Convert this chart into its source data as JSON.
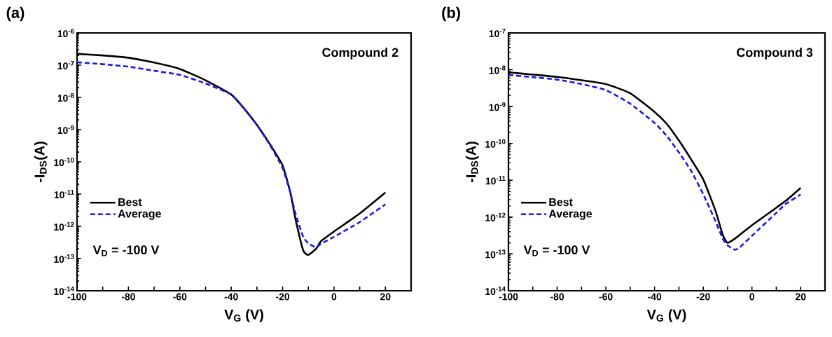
{
  "chart_data": [
    {
      "type": "line",
      "title": "(a)",
      "xlabel": "V$_{G}$ (V)",
      "ylabel": "-I$_{DS}$(A)",
      "log": "y",
      "legend": "left",
      "annotations": [
        "Compound 2",
        "V$_{D}$ = -100 V"
      ],
      "xlim": [
        -100,
        30
      ],
      "ylim": [
        1e-14,
        1e-06
      ],
      "xticks": [
        -100,
        {
          "value": -90,
          "label": null
        },
        -80,
        {
          "value": -70,
          "label": null
        },
        -60,
        {
          "value": -50,
          "label": null
        },
        -40,
        {
          "value": -30,
          "label": null
        },
        -20,
        {
          "value": -10,
          "label": null
        },
        0,
        {
          "value": 10,
          "label": null
        },
        20
      ],
      "yticks": [
        {
          "value": 1e-14,
          "label": "10$^{-14}$"
        },
        {
          "value": 1e-13,
          "label": "10$^{-13}$"
        },
        {
          "value": 1e-12,
          "label": "10$^{-12}$"
        },
        {
          "value": 1e-11,
          "label": "10$^{-11}$"
        },
        {
          "value": 1e-10,
          "label": "10$^{-10}$"
        },
        {
          "value": 1e-09,
          "label": "10$^{-9}$"
        },
        {
          "value": 1e-08,
          "label": "10$^{-8}$"
        },
        {
          "value": 1e-07,
          "label": "10$^{-7}$"
        },
        {
          "value": 1e-06,
          "label": "10$^{-6}$"
        }
      ],
      "x": [
        -100,
        -90,
        -80,
        -70,
        -60,
        -50,
        -40,
        -35,
        -30,
        -25,
        -20,
        -17,
        -15,
        -12,
        -10,
        -7,
        -5,
        0,
        10,
        20
      ],
      "series": [
        {
          "name": "Best",
          "color": "#000000",
          "line_style": "solid",
          "values": [
            2.24e-07,
            2e-07,
            1.7e-07,
            1.2e-07,
            7.6e-08,
            3.4e-08,
            1.23e-08,
            4.5e-09,
            1.4e-09,
            3.6e-10,
            7.7e-11,
            1.12e-11,
            1.7e-12,
            1.8e-13,
            1.3e-13,
            2e-13,
            3.5e-13,
            6.9e-13,
            2.5e-12,
            1.12e-11
          ]
        },
        {
          "name": "Average",
          "color": "#1a1ae6",
          "line_style": "dashed",
          "values": [
            1.23e-07,
            1.07e-07,
            9e-08,
            6.7e-08,
            5e-08,
            2.7e-08,
            1.23e-08,
            4.5e-09,
            1.4e-09,
            3.4e-10,
            6.4e-11,
            1.12e-11,
            2.5e-12,
            4.7e-13,
            3e-13,
            2.2e-13,
            2.9e-13,
            4.7e-13,
            1.35e-12,
            4.8e-12
          ]
        }
      ]
    },
    {
      "type": "line",
      "title": "(b)",
      "xlabel": "V$_{G}$ (V)",
      "ylabel": "-I$_{DS}$(A)",
      "log": "y",
      "legend": "left",
      "annotations": [
        "Compound 3",
        "V$_{D}$ = -100 V"
      ],
      "xlim": [
        -100,
        30
      ],
      "ylim": [
        1e-14,
        1e-07
      ],
      "xticks": [
        -100,
        {
          "value": -90,
          "label": null
        },
        -80,
        {
          "value": -70,
          "label": null
        },
        -60,
        {
          "value": -50,
          "label": null
        },
        -40,
        {
          "value": -30,
          "label": null
        },
        -20,
        {
          "value": -10,
          "label": null
        },
        0,
        {
          "value": 10,
          "label": null
        },
        20
      ],
      "yticks": [
        {
          "value": 1e-14,
          "label": "10$^{-14}$"
        },
        {
          "value": 1e-13,
          "label": "10$^{-13}$"
        },
        {
          "value": 1e-12,
          "label": "10$^{-12}$"
        },
        {
          "value": 1e-11,
          "label": "10$^{-11}$"
        },
        {
          "value": 1e-10,
          "label": "10$^{-10}$"
        },
        {
          "value": 1e-09,
          "label": "10$^{-9}$"
        },
        {
          "value": 1e-08,
          "label": "10$^{-8}$"
        },
        {
          "value": 1e-07,
          "label": "10$^{-7}$"
        }
      ],
      "x": [
        -100,
        -90,
        -80,
        -70,
        -60,
        -50,
        -40,
        -35,
        -30,
        -25,
        -20,
        -15,
        -12,
        -10,
        -7,
        -5,
        0,
        10,
        14,
        20
      ],
      "series": [
        {
          "name": "Best",
          "color": "#000000",
          "line_style": "solid",
          "values": [
            8.5e-09,
            7.4e-09,
            6.4e-09,
            5.2e-09,
            4.1e-09,
            2.3e-09,
            7.2e-10,
            3.4e-10,
            1.2e-10,
            3.7e-11,
            1.05e-11,
            1.5e-12,
            3.3e-13,
            2e-13,
            2.6e-13,
            3.3e-13,
            6e-13,
            1.8e-12,
            2.8e-12,
            6.2e-12
          ]
        },
        {
          "name": "Average",
          "color": "#1a1ae6",
          "line_style": "dashed",
          "values": [
            7.2e-09,
            6.3e-09,
            5.4e-09,
            4.1e-09,
            2.8e-09,
            1.2e-09,
            3.6e-10,
            1.6e-10,
            5.7e-11,
            1.8e-11,
            4.2e-12,
            7.8e-13,
            2.6e-13,
            1.7e-13,
            1.3e-13,
            1.5e-13,
            3.1e-13,
            1.3e-12,
            2.3e-12,
            4.1e-12
          ]
        }
      ]
    }
  ]
}
